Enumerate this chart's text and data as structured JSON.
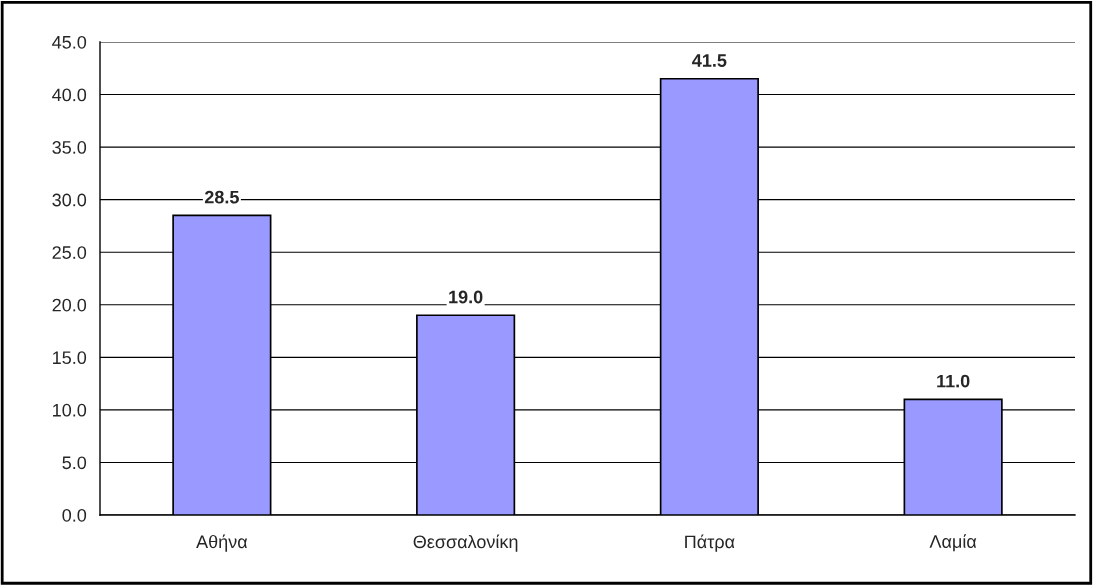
{
  "chart_data": {
    "type": "bar",
    "categories": [
      "Αθήνα",
      "Θεσσαλονίκη",
      "Πάτρα",
      "Λαμία"
    ],
    "values": [
      28.5,
      19.0,
      41.5,
      11.0
    ],
    "value_labels": [
      "28.5",
      "19.0",
      "41.5",
      "11.0"
    ],
    "color": "#9999ff",
    "ylim": [
      0,
      45
    ],
    "yticks": [
      {
        "value": 0,
        "label": "0.0"
      },
      {
        "value": 5,
        "label": "5.0"
      },
      {
        "value": 10,
        "label": "10.0"
      },
      {
        "value": 15,
        "label": "15.0"
      },
      {
        "value": 20,
        "label": "20.0"
      },
      {
        "value": 25,
        "label": "25.0"
      },
      {
        "value": 30,
        "label": "30.0"
      },
      {
        "value": 35,
        "label": "35.0"
      },
      {
        "value": 40,
        "label": "40.0"
      },
      {
        "value": 45,
        "label": "45.0"
      }
    ],
    "grid": "y",
    "legend": false
  }
}
